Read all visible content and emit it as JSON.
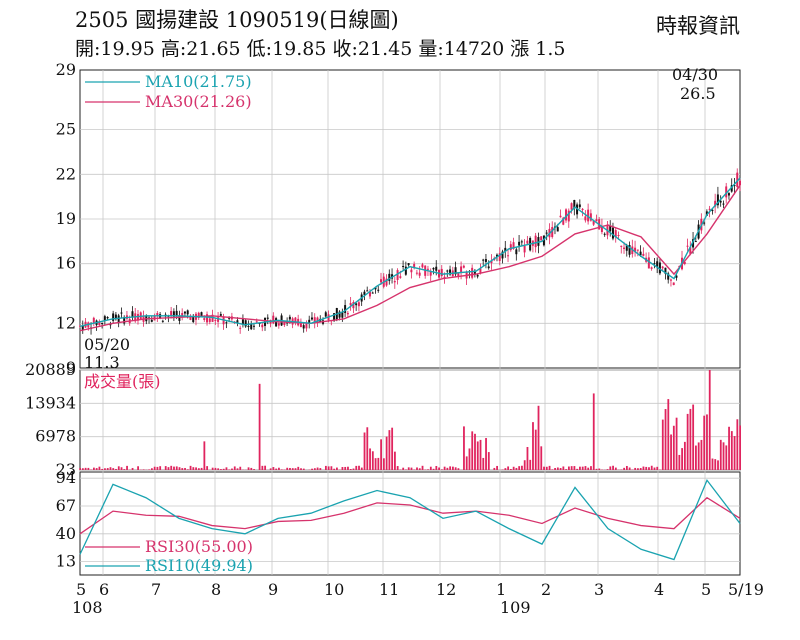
{
  "header": {
    "title": "2505  國揚建設 1090519(日線圖)",
    "ohlc": "開:19.95 高:21.65 低:19.85 收:21.45 量:14720 漲 1.5",
    "source": "時報資訊"
  },
  "colors": {
    "up": "#e0245e",
    "down": "#111111",
    "ma10": "#1aa3b0",
    "ma30": "#d6336c",
    "volume": "#e0245e",
    "grid": "#c8c8c8"
  },
  "chart_data": [
    {
      "type": "candlestick",
      "yticks": [
        "29",
        "25",
        "22",
        "19",
        "16",
        "12",
        "9"
      ],
      "ylim": [
        9,
        29
      ],
      "series": [
        {
          "name": "MA10(21.75)",
          "color": "#1aa3b0",
          "x": [
            0,
            0.05,
            0.1,
            0.15,
            0.2,
            0.25,
            0.3,
            0.35,
            0.4,
            0.45,
            0.5,
            0.55,
            0.6,
            0.65,
            0.7,
            0.75,
            0.8,
            0.85,
            0.9,
            0.95,
            1.0
          ],
          "y": [
            11.8,
            12.3,
            12.5,
            12.5,
            12.4,
            11.9,
            12.2,
            12.0,
            12.8,
            14.5,
            15.8,
            15.3,
            15.5,
            17.0,
            17.5,
            19.8,
            18.2,
            16.5,
            15.0,
            19.3,
            21.75
          ]
        },
        {
          "name": "MA30(21.26)",
          "color": "#d6336c",
          "x": [
            0,
            0.05,
            0.1,
            0.15,
            0.2,
            0.25,
            0.3,
            0.35,
            0.4,
            0.45,
            0.5,
            0.55,
            0.6,
            0.65,
            0.7,
            0.75,
            0.8,
            0.85,
            0.9,
            0.95,
            1.0
          ],
          "y": [
            11.5,
            12.0,
            12.3,
            12.4,
            12.5,
            12.3,
            12.1,
            12.0,
            12.3,
            13.2,
            14.4,
            15.0,
            15.3,
            15.8,
            16.5,
            18.0,
            18.6,
            17.8,
            15.3,
            18.0,
            21.26
          ]
        }
      ],
      "annotations": [
        {
          "text": "04/30",
          "x": 0.93,
          "y": 27.7
        },
        {
          "text": "26.5",
          "x": 0.93,
          "y": 26.5
        },
        {
          "text": "05/20",
          "x": 0.0,
          "y": 10.2
        },
        {
          "text": "11.3",
          "x": 0.0,
          "y": 9.2
        }
      ]
    },
    {
      "type": "bar",
      "title": "成交量(張)",
      "yticks": [
        "20889",
        "13934",
        "6978",
        "23"
      ],
      "ylim": [
        23,
        20889
      ]
    },
    {
      "type": "line",
      "yticks": [
        "94",
        "67",
        "40",
        "13"
      ],
      "ylim": [
        0,
        100
      ],
      "series": [
        {
          "name": "RSI30(55.00)",
          "color": "#d6336c",
          "x": [
            0,
            0.05,
            0.1,
            0.15,
            0.2,
            0.25,
            0.3,
            0.35,
            0.4,
            0.45,
            0.5,
            0.55,
            0.6,
            0.65,
            0.7,
            0.75,
            0.8,
            0.85,
            0.9,
            0.95,
            1.0
          ],
          "y": [
            40,
            62,
            58,
            57,
            48,
            45,
            52,
            53,
            60,
            70,
            68,
            60,
            62,
            58,
            50,
            65,
            55,
            48,
            45,
            75,
            55
          ]
        },
        {
          "name": "RSI10(49.94)",
          "color": "#1aa3b0",
          "x": [
            0,
            0.05,
            0.1,
            0.15,
            0.2,
            0.25,
            0.3,
            0.35,
            0.4,
            0.45,
            0.5,
            0.55,
            0.6,
            0.65,
            0.7,
            0.75,
            0.8,
            0.85,
            0.9,
            0.95,
            1.0
          ],
          "y": [
            20,
            88,
            75,
            55,
            45,
            40,
            55,
            60,
            72,
            82,
            75,
            55,
            62,
            45,
            30,
            85,
            45,
            25,
            15,
            92,
            50
          ]
        }
      ]
    }
  ],
  "xaxis": {
    "ticks": [
      "5",
      "6",
      "7",
      "8",
      "9",
      "10",
      "11",
      "12",
      "1",
      "2",
      "3",
      "4",
      "5",
      "5/19"
    ],
    "years": [
      "108",
      "109"
    ]
  }
}
